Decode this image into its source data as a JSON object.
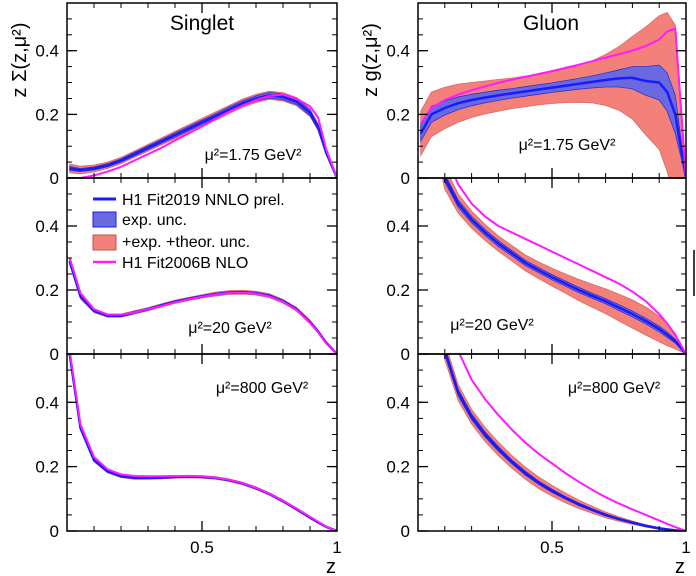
{
  "chart_data": {
    "type": "line",
    "title": "",
    "xlabel": "z",
    "columns": [
      {
        "title": "Singlet",
        "ylabel": "z Σ(z,μ²)"
      },
      {
        "title": "Gluon",
        "ylabel": "z g(z,μ²)"
      }
    ],
    "xlim": [
      0.0,
      1.0
    ],
    "ylim": [
      0.0,
      0.55
    ],
    "x_ticks": [
      0.5,
      1
    ],
    "x_tick_labels": [
      "0.5",
      "1"
    ],
    "y_ticks": [
      0,
      0.2,
      0.4
    ],
    "y_tick_labels": [
      "0",
      "0.2",
      "0.4"
    ],
    "scale_labels": [
      "μ²=1.75 GeV²",
      "μ²=20 GeV²",
      "μ²=800 GeV²"
    ],
    "legend": [
      {
        "label": "H1 Fit2019 NNLO prel.",
        "kind": "line",
        "color": "#1a1aff"
      },
      {
        "label": "exp. unc.",
        "kind": "band",
        "color": "#6a6ae0"
      },
      {
        "label": "+exp. +theor. unc.",
        "kind": "band",
        "color": "#f4807a"
      },
      {
        "label": "H1 Fit2006B NLO",
        "kind": "line",
        "color": "#ff1aff"
      }
    ],
    "x": [
      0.01,
      0.05,
      0.1,
      0.15,
      0.2,
      0.25,
      0.3,
      0.35,
      0.4,
      0.45,
      0.5,
      0.55,
      0.6,
      0.65,
      0.7,
      0.75,
      0.8,
      0.85,
      0.9,
      0.93,
      0.96,
      1.0
    ],
    "panels": [
      {
        "quantity": "Singlet",
        "scale": "1.75",
        "nominal": [
          0.03,
          0.025,
          0.03,
          0.04,
          0.055,
          0.075,
          0.095,
          0.115,
          0.135,
          0.155,
          0.175,
          0.195,
          0.215,
          0.235,
          0.25,
          0.26,
          0.255,
          0.24,
          0.205,
          0.16,
          0.08,
          0.0
        ],
        "fit2006": [
          0.0,
          0.0,
          0.008,
          0.02,
          0.035,
          0.055,
          0.075,
          0.095,
          0.118,
          0.14,
          0.162,
          0.185,
          0.208,
          0.228,
          0.245,
          0.258,
          0.262,
          0.25,
          0.225,
          0.19,
          0.09,
          0.0
        ],
        "exp_unc": [
          0.006,
          0.005,
          0.005,
          0.005,
          0.005,
          0.006,
          0.006,
          0.006,
          0.007,
          0.007,
          0.007,
          0.007,
          0.008,
          0.008,
          0.008,
          0.009,
          0.009,
          0.009,
          0.009,
          0.008,
          0.005,
          0.0
        ],
        "tot_unc": [
          0.014,
          0.012,
          0.011,
          0.01,
          0.01,
          0.01,
          0.011,
          0.011,
          0.012,
          0.012,
          0.013,
          0.013,
          0.013,
          0.013,
          0.013,
          0.013,
          0.013,
          0.013,
          0.012,
          0.011,
          0.008,
          0.0
        ]
      },
      {
        "quantity": "Singlet",
        "scale": "20",
        "nominal": [
          0.29,
          0.18,
          0.135,
          0.12,
          0.12,
          0.13,
          0.14,
          0.152,
          0.163,
          0.172,
          0.18,
          0.187,
          0.192,
          0.193,
          0.19,
          0.182,
          0.165,
          0.14,
          0.1,
          0.07,
          0.035,
          0.0
        ],
        "fit2006": [
          0.3,
          0.19,
          0.14,
          0.123,
          0.123,
          0.13,
          0.14,
          0.15,
          0.161,
          0.171,
          0.179,
          0.186,
          0.191,
          0.192,
          0.189,
          0.18,
          0.163,
          0.138,
          0.098,
          0.068,
          0.033,
          0.0
        ],
        "exp_unc": [
          0.005,
          0.004,
          0.003,
          0.003,
          0.003,
          0.003,
          0.003,
          0.003,
          0.003,
          0.003,
          0.003,
          0.003,
          0.003,
          0.003,
          0.003,
          0.003,
          0.003,
          0.003,
          0.003,
          0.003,
          0.002,
          0.0
        ],
        "tot_unc": [
          0.01,
          0.008,
          0.006,
          0.005,
          0.005,
          0.005,
          0.005,
          0.005,
          0.005,
          0.005,
          0.005,
          0.006,
          0.006,
          0.006,
          0.006,
          0.006,
          0.006,
          0.006,
          0.006,
          0.005,
          0.004,
          0.0
        ]
      },
      {
        "quantity": "Singlet",
        "scale": "800",
        "nominal": [
          0.55,
          0.32,
          0.22,
          0.185,
          0.17,
          0.165,
          0.165,
          0.166,
          0.168,
          0.169,
          0.168,
          0.165,
          0.158,
          0.148,
          0.133,
          0.115,
          0.093,
          0.068,
          0.042,
          0.027,
          0.013,
          0.0
        ],
        "fit2006": [
          0.56,
          0.33,
          0.23,
          0.192,
          0.176,
          0.171,
          0.17,
          0.17,
          0.171,
          0.171,
          0.17,
          0.166,
          0.159,
          0.149,
          0.134,
          0.116,
          0.094,
          0.07,
          0.044,
          0.029,
          0.014,
          0.0
        ],
        "exp_unc": [
          0.005,
          0.003,
          0.003,
          0.002,
          0.002,
          0.002,
          0.002,
          0.002,
          0.002,
          0.002,
          0.002,
          0.002,
          0.002,
          0.002,
          0.002,
          0.002,
          0.002,
          0.002,
          0.002,
          0.002,
          0.001,
          0.0
        ],
        "tot_unc": [
          0.01,
          0.006,
          0.005,
          0.004,
          0.004,
          0.004,
          0.004,
          0.004,
          0.004,
          0.004,
          0.004,
          0.004,
          0.004,
          0.004,
          0.004,
          0.004,
          0.004,
          0.004,
          0.004,
          0.003,
          0.002,
          0.0
        ]
      },
      {
        "quantity": "Gluon",
        "scale": "1.75",
        "nominal": [
          0.14,
          0.2,
          0.22,
          0.235,
          0.245,
          0.253,
          0.26,
          0.266,
          0.272,
          0.278,
          0.284,
          0.29,
          0.296,
          0.302,
          0.308,
          0.313,
          0.315,
          0.305,
          0.3,
          0.27,
          0.2,
          0.0
        ],
        "fit2006": [
          0.17,
          0.22,
          0.245,
          0.262,
          0.276,
          0.288,
          0.299,
          0.309,
          0.318,
          0.327,
          0.336,
          0.346,
          0.356,
          0.367,
          0.378,
          0.389,
          0.4,
          0.415,
          0.435,
          0.46,
          0.47,
          0.0
        ],
        "exp_unc": [
          0.025,
          0.025,
          0.022,
          0.02,
          0.018,
          0.017,
          0.016,
          0.015,
          0.015,
          0.015,
          0.015,
          0.016,
          0.017,
          0.019,
          0.022,
          0.027,
          0.035,
          0.045,
          0.055,
          0.06,
          0.06,
          0.0
        ],
        "tot_unc": [
          0.07,
          0.07,
          0.065,
          0.06,
          0.055,
          0.052,
          0.05,
          0.048,
          0.048,
          0.048,
          0.05,
          0.053,
          0.058,
          0.066,
          0.08,
          0.1,
          0.13,
          0.17,
          0.21,
          0.25,
          0.28,
          0.0
        ]
      },
      {
        "quantity": "Gluon",
        "scale": "20",
        "nominal": [
          1.0,
          0.75,
          0.55,
          0.47,
          0.42,
          0.38,
          0.345,
          0.315,
          0.285,
          0.262,
          0.24,
          0.22,
          0.2,
          0.182,
          0.165,
          0.145,
          0.125,
          0.103,
          0.078,
          0.06,
          0.04,
          0.0
        ],
        "fit2006": [
          1.2,
          0.95,
          0.63,
          0.53,
          0.47,
          0.43,
          0.4,
          0.38,
          0.36,
          0.34,
          0.32,
          0.3,
          0.28,
          0.26,
          0.24,
          0.22,
          0.195,
          0.165,
          0.125,
          0.095,
          0.06,
          0.0
        ],
        "exp_unc": [
          0.02,
          0.015,
          0.012,
          0.011,
          0.01,
          0.009,
          0.009,
          0.008,
          0.008,
          0.008,
          0.008,
          0.008,
          0.008,
          0.008,
          0.008,
          0.009,
          0.009,
          0.009,
          0.009,
          0.008,
          0.006,
          0.0
        ],
        "tot_unc": [
          0.06,
          0.045,
          0.035,
          0.03,
          0.027,
          0.025,
          0.024,
          0.024,
          0.025,
          0.026,
          0.028,
          0.03,
          0.033,
          0.036,
          0.039,
          0.042,
          0.044,
          0.044,
          0.04,
          0.034,
          0.024,
          0.0
        ]
      },
      {
        "quantity": "Gluon",
        "scale": "800",
        "nominal": [
          1.5,
          0.9,
          0.56,
          0.43,
          0.355,
          0.3,
          0.255,
          0.215,
          0.18,
          0.15,
          0.125,
          0.103,
          0.083,
          0.066,
          0.05,
          0.037,
          0.026,
          0.016,
          0.008,
          0.005,
          0.002,
          0.0
        ],
        "fit2006": [
          1.8,
          1.1,
          0.72,
          0.56,
          0.47,
          0.41,
          0.36,
          0.315,
          0.275,
          0.24,
          0.21,
          0.18,
          0.153,
          0.128,
          0.105,
          0.085,
          0.067,
          0.05,
          0.033,
          0.022,
          0.012,
          0.0
        ],
        "exp_unc": [
          0.03,
          0.015,
          0.012,
          0.01,
          0.009,
          0.008,
          0.007,
          0.006,
          0.006,
          0.005,
          0.005,
          0.004,
          0.004,
          0.003,
          0.003,
          0.002,
          0.002,
          0.002,
          0.001,
          0.001,
          0.001,
          0.0
        ],
        "tot_unc": [
          0.06,
          0.035,
          0.028,
          0.025,
          0.023,
          0.022,
          0.021,
          0.02,
          0.019,
          0.018,
          0.017,
          0.015,
          0.013,
          0.011,
          0.009,
          0.007,
          0.005,
          0.004,
          0.003,
          0.002,
          0.001,
          0.0
        ]
      }
    ],
    "colors": {
      "nominal": "#1a1aff",
      "fit2006": "#ff1aff",
      "exp_band": "#6a6ae0",
      "tot_band": "#f4807a"
    }
  }
}
